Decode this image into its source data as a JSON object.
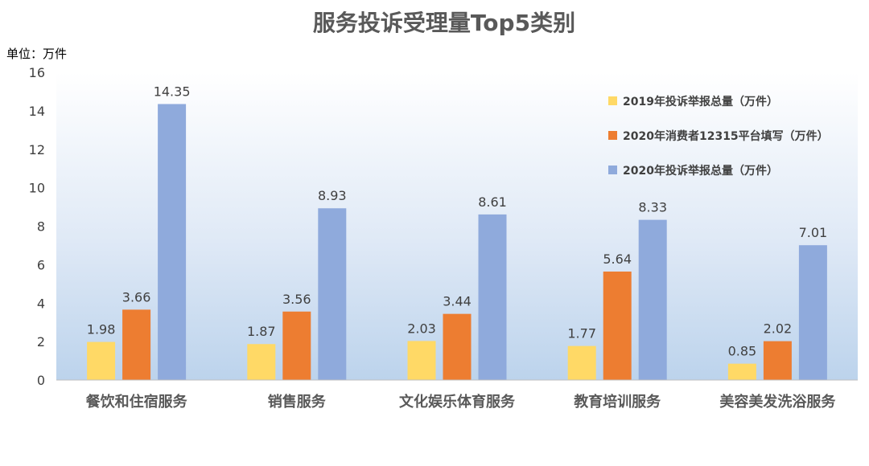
{
  "chart_data": {
    "type": "bar",
    "title": "服务投诉受理量Top5类别",
    "unit_label": "单位：万件",
    "xlabel": "",
    "ylabel": "",
    "ylim": [
      0,
      16
    ],
    "yticks": [
      0,
      2,
      4,
      6,
      8,
      10,
      12,
      14,
      16
    ],
    "grid": false,
    "legend_position": "top-right",
    "categories": [
      "餐饮和住宿服务",
      "销售服务",
      "文化娱乐体育服务",
      "教育培训服务",
      "美容美发洗浴服务"
    ],
    "series": [
      {
        "name": "2019年投诉举报总量（万件）",
        "color": "#FFD966",
        "values": [
          1.98,
          1.87,
          2.03,
          1.77,
          0.85
        ]
      },
      {
        "name": "2020年消费者12315平台填写（万件）",
        "color": "#ED7D31",
        "values": [
          3.66,
          3.56,
          3.44,
          5.64,
          2.02
        ]
      },
      {
        "name": "2020年投诉举报总量（万件）",
        "color": "#8FAADC",
        "values": [
          14.35,
          8.93,
          8.61,
          8.33,
          7.01
        ]
      }
    ]
  }
}
